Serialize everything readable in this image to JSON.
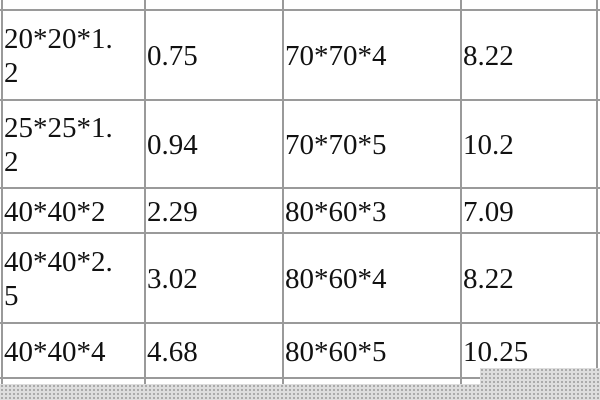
{
  "table": {
    "rows": [
      {
        "size_a": [
          "20*20*1.",
          "2"
        ],
        "weight_a": "0.75",
        "size_b": "70*70*4",
        "weight_b": "8.22"
      },
      {
        "size_a": [
          "25*25*1.",
          "2"
        ],
        "weight_a": "0.94",
        "size_b": "70*70*5",
        "weight_b": "10.2"
      },
      {
        "size_a": [
          "40*40*2"
        ],
        "weight_a": "2.29",
        "size_b": "80*60*3",
        "weight_b": "7.09"
      },
      {
        "size_a": [
          "40*40*2.",
          "5"
        ],
        "weight_a": "3.02",
        "size_b": "80*60*4",
        "weight_b": "8.22"
      },
      {
        "size_a": [
          "40*40*4"
        ],
        "weight_a": "4.68",
        "size_b": "80*60*5",
        "weight_b": "10.25"
      }
    ]
  }
}
